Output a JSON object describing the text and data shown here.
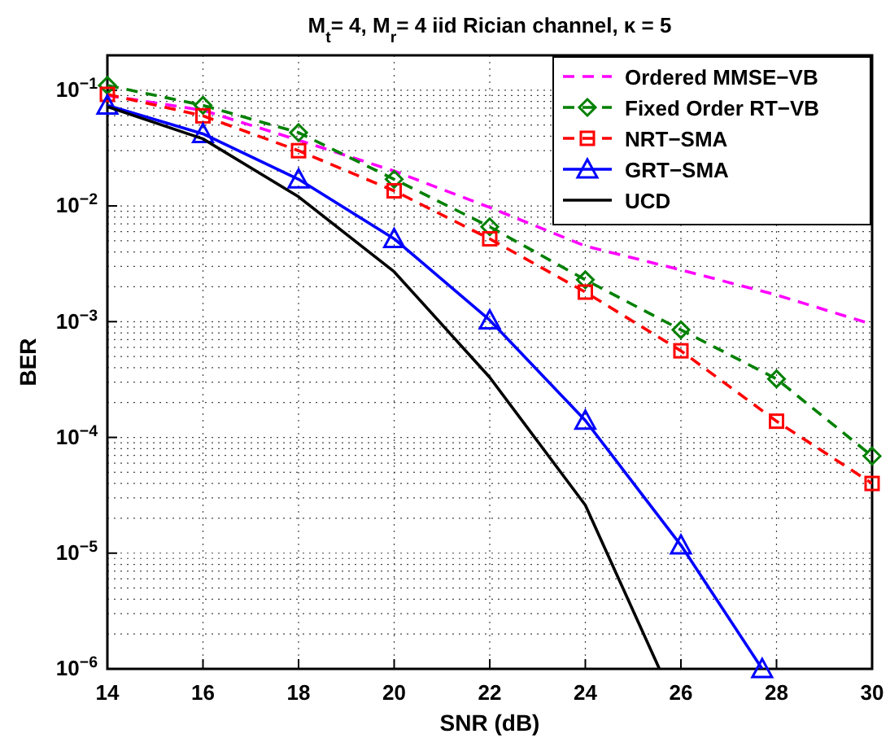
{
  "chart_data": {
    "type": "line",
    "title": "M$_{t}$= 4, M$_{r}$= 4 iid Rician channel, κ = 5",
    "xlabel": "SNR (dB)",
    "ylabel": "BER",
    "x": [
      14,
      16,
      18,
      20,
      22,
      24,
      26,
      28,
      30
    ],
    "xlim": [
      14,
      30
    ],
    "xticks": [
      14,
      16,
      18,
      20,
      22,
      24,
      26,
      28,
      30
    ],
    "ylim": [
      1e-06,
      0.2
    ],
    "log": "y",
    "yticks": [
      {
        "value": 1e-06,
        "label": "10$^{−6}$"
      },
      {
        "value": 1e-05,
        "label": "10$^{−5}$"
      },
      {
        "value": 0.0001,
        "label": "10$^{−4}$"
      },
      {
        "value": 0.001,
        "label": "10$^{−3}$"
      },
      {
        "value": 0.01,
        "label": "10$^{−2}$"
      },
      {
        "value": 0.1,
        "label": "10$^{−1}$"
      }
    ],
    "grid": true,
    "legend": "top right",
    "series": [
      {
        "name": "Ordered MMSE−VB",
        "color": "#ff00ff",
        "line_style": "dashed",
        "marker": "none",
        "values": [
          0.09,
          0.067,
          0.037,
          0.02,
          0.0097,
          0.0045,
          0.0028,
          0.0017,
          0.00095
        ]
      },
      {
        "name": "Fixed Order RT−VB",
        "color": "#008000",
        "line_style": "dashed",
        "marker": "diamond",
        "values": [
          0.11,
          0.074,
          0.043,
          0.017,
          0.0066,
          0.0023,
          0.00085,
          0.00032,
          6.9e-05
        ]
      },
      {
        "name": "NRT−SMA",
        "color": "#ff0000",
        "line_style": "dashed",
        "marker": "square",
        "values": [
          0.092,
          0.06,
          0.03,
          0.0135,
          0.0052,
          0.0018,
          0.00056,
          0.000138,
          4e-05
        ]
      },
      {
        "name": "GRT−SMA",
        "color": "#0000ff",
        "line_style": "solid",
        "marker": "triangle",
        "x": [
          14,
          16,
          18,
          20,
          22,
          24,
          26,
          27.7
        ],
        "values": [
          0.074,
          0.042,
          0.017,
          0.0052,
          0.00103,
          0.00014,
          1.17e-05,
          1e-06
        ]
      },
      {
        "name": "UCD",
        "color": "#000000",
        "line_style": "solid",
        "marker": "none",
        "x": [
          14,
          16,
          18,
          20,
          22,
          24,
          25.55
        ],
        "values": [
          0.072,
          0.038,
          0.012,
          0.0027,
          0.00033,
          2.6e-05,
          1e-06
        ]
      }
    ]
  }
}
